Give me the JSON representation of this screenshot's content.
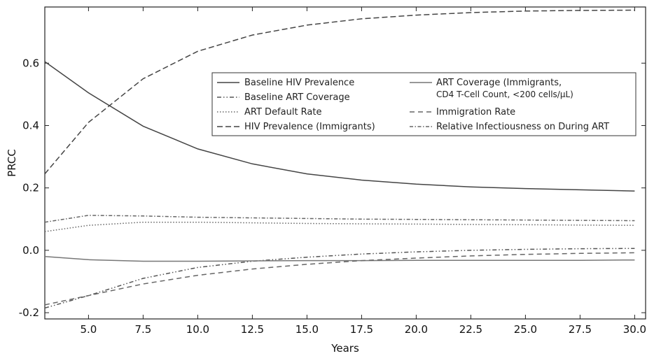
{
  "chart_data": {
    "type": "line",
    "xlabel": "Years",
    "ylabel": "PRCC",
    "xlim": [
      3,
      30.5
    ],
    "ylim": [
      -0.22,
      0.78
    ],
    "xticks": [
      "5.0",
      "7.5",
      "10.0",
      "12.5",
      "15.0",
      "17.5",
      "20.0",
      "22.5",
      "25.0",
      "27.5",
      "30.0"
    ],
    "yticks": [
      "-0.2",
      "0.0",
      "0.2",
      "0.4",
      "0.6"
    ],
    "grid": false,
    "legend_placement": "upper-right",
    "x": [
      3,
      5,
      7.5,
      10,
      12.5,
      15,
      17.5,
      20,
      22.5,
      25,
      27.5,
      30
    ],
    "series": [
      {
        "name": "Baseline HIV Prevalence",
        "values": [
          0.605,
          0.505,
          0.398,
          0.325,
          0.277,
          0.245,
          0.225,
          0.212,
          0.203,
          0.198,
          0.194,
          0.19
        ],
        "color": "#444444",
        "dash": ""
      },
      {
        "name": "Baseline ART Coverage",
        "values": [
          -0.185,
          -0.145,
          -0.09,
          -0.055,
          -0.035,
          -0.022,
          -0.012,
          -0.005,
          0.0,
          0.003,
          0.005,
          0.006
        ],
        "color": "#555555",
        "dash": "6,3,1.5,3,1.5,3"
      },
      {
        "name": "ART Default Rate",
        "values": [
          0.06,
          0.08,
          0.09,
          0.09,
          0.088,
          0.086,
          0.085,
          0.084,
          0.083,
          0.082,
          0.081,
          0.08
        ],
        "color": "#666666",
        "dash": "1.5,2.5"
      },
      {
        "name": "HIV Prevalence (Immigrants)",
        "values": [
          0.245,
          0.41,
          0.55,
          0.638,
          0.69,
          0.722,
          0.742,
          0.754,
          0.762,
          0.767,
          0.769,
          0.77
        ],
        "color": "#444444",
        "dash": "8,4"
      },
      {
        "name": "ART Coverage (Immigrants, CD4 T-Cell Count, <200 cells/μL)",
        "values": [
          -0.02,
          -0.03,
          -0.035,
          -0.035,
          -0.034,
          -0.033,
          -0.033,
          -0.032,
          -0.032,
          -0.032,
          -0.032,
          -0.031
        ],
        "color": "#777777",
        "dash": ""
      },
      {
        "name": "Immigration Rate",
        "values": [
          -0.175,
          -0.145,
          -0.108,
          -0.08,
          -0.06,
          -0.045,
          -0.033,
          -0.025,
          -0.018,
          -0.013,
          -0.01,
          -0.008
        ],
        "color": "#666666",
        "dash": "7,5"
      },
      {
        "name": "Relative Infectiousness on During ART",
        "values": [
          0.09,
          0.112,
          0.11,
          0.106,
          0.104,
          0.102,
          0.1,
          0.099,
          0.098,
          0.097,
          0.096,
          0.095
        ],
        "color": "#666666",
        "dash": "5,2.5,1.5,2.5"
      }
    ]
  },
  "legend": {
    "col1": [
      {
        "label": "Baseline HIV Prevalence",
        "series": 0
      },
      {
        "label": "Baseline ART Coverage",
        "series": 1
      },
      {
        "label": "ART Default Rate",
        "series": 2
      },
      {
        "label": "HIV Prevalence (Immigrants)",
        "series": 3
      }
    ],
    "col2_line1": "ART Coverage (Immigrants,",
    "col2_line2": "CD4 T-Cell Count, <200 cells/μL)",
    "col2_rest": [
      {
        "label": "Immigration Rate",
        "series": 5
      },
      {
        "label": "Relative Infectiousness on During ART",
        "series": 6
      }
    ]
  }
}
